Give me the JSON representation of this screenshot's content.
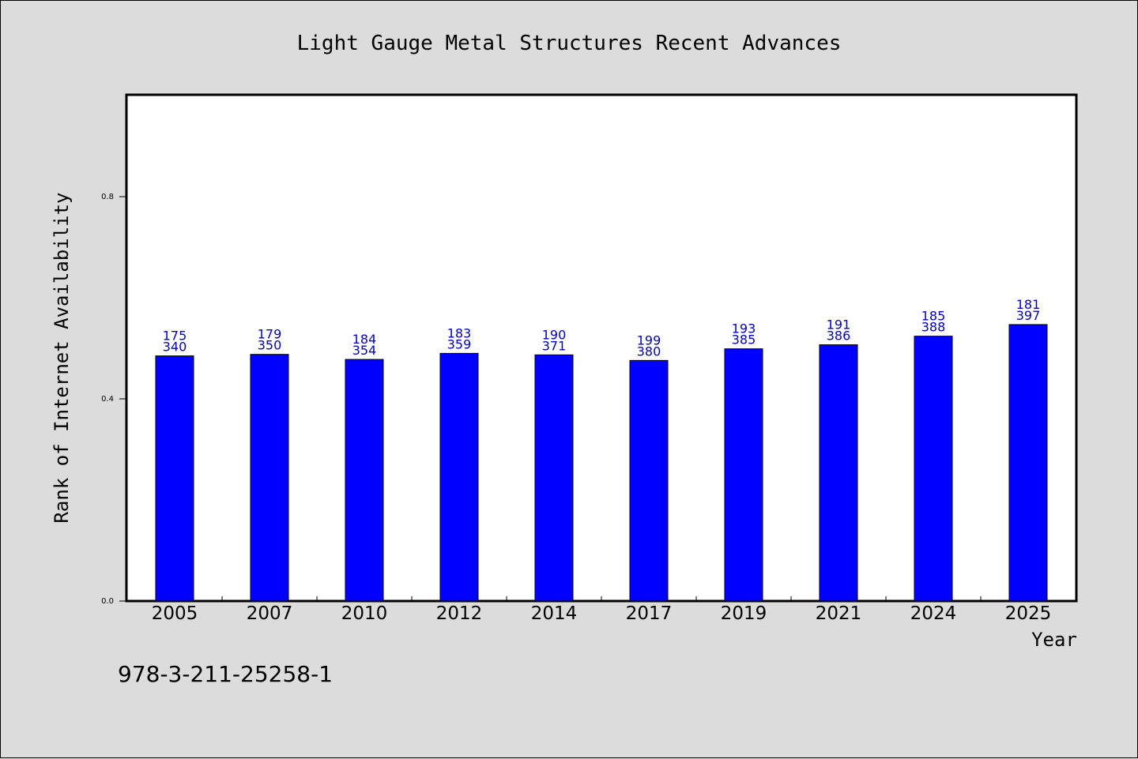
{
  "chart_data": {
    "type": "bar",
    "title": "Light Gauge Metal Structures Recent Advances",
    "xlabel": "Year",
    "ylabel": "Rank of Internet Availability",
    "categories": [
      "2005",
      "2007",
      "2010",
      "2012",
      "2014",
      "2017",
      "2019",
      "2021",
      "2024",
      "2025"
    ],
    "values": [
      0.485,
      0.488,
      0.478,
      0.49,
      0.487,
      0.476,
      0.499,
      0.507,
      0.524,
      0.547
    ],
    "labels_top": [
      "175",
      "179",
      "184",
      "183",
      "190",
      "199",
      "193",
      "191",
      "185",
      "181"
    ],
    "labels_bottom": [
      "340",
      "350",
      "354",
      "359",
      "371",
      "380",
      "385",
      "386",
      "388",
      "397"
    ],
    "yticks": [
      "0.0",
      "0.4",
      "0.8"
    ],
    "ytick_values": [
      0.0,
      0.4,
      0.8
    ],
    "ylim": [
      0,
      1.0
    ],
    "grid": false,
    "bar_color": "#0000ff",
    "label_color": "#0000cc",
    "background_color": "#dcdcdc",
    "plot_background_color": "#ffffff"
  },
  "footer": {
    "isbn": "978-3-211-25258-1"
  }
}
